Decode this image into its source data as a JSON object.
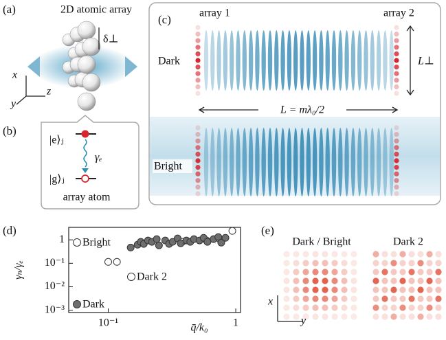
{
  "figure": {
    "a": {
      "label": "(a)",
      "title": "2D atomic array",
      "delta": "δ⊥",
      "x": "x",
      "y": "y",
      "z": "z"
    },
    "b": {
      "label": "(b)",
      "excited": "|e⟩ⱼ",
      "gamma": "γₑ",
      "ground": "|g⟩ⱼ",
      "caption": "array atom"
    },
    "c": {
      "label": "(c)",
      "array1": "array 1",
      "array2": "array 2",
      "dark": "Dark",
      "bright": "Bright",
      "lperp": "L⊥",
      "length": "L = mλ₀/2"
    },
    "d": {
      "label": "(d)"
    },
    "e": {
      "label": "(e)",
      "left": "Dark / Bright",
      "right": "Dark 2",
      "x": "x",
      "y": "y"
    }
  },
  "chart_data": {
    "type": "scatter",
    "xlabel": "q̄/k₀",
    "ylabel": "γₙ/γₑ",
    "log_x": true,
    "log_y": true,
    "xlim": [
      0.049,
      1.09
    ],
    "ylim": [
      0.0008,
      3.4
    ],
    "xticks": [
      {
        "value": 0.1,
        "label": "10⁻¹"
      },
      1
    ],
    "yticks": [
      {
        "value": 0.001,
        "label": "10⁻³"
      },
      {
        "value": 0.01,
        "label": "10⁻²"
      },
      {
        "value": 0.1,
        "label": "10⁻¹"
      },
      1
    ],
    "series": [
      {
        "name": "Bright",
        "color": "#ffffff",
        "x": [
          0.1,
          0.117,
          0.94
        ],
        "values": [
          0.115,
          0.115,
          2.4
        ]
      },
      {
        "name": "Dark 2",
        "color": "#ffffff",
        "x": [
          0.38,
          0.59,
          0.75
        ],
        "values": [
          0.82,
          0.94,
          1.07
        ]
      },
      {
        "name": "Dark",
        "color": "#6e6e6e",
        "x": [
          0.15,
          0.17,
          0.18,
          0.19,
          0.205,
          0.22,
          0.24,
          0.25,
          0.28,
          0.3,
          0.32,
          0.35,
          0.37,
          0.41,
          0.44,
          0.47,
          0.52,
          0.56,
          0.6,
          0.67,
          0.73,
          0.77,
          0.83
        ],
        "values": [
          0.47,
          0.62,
          0.82,
          0.67,
          0.94,
          0.82,
          1.07,
          0.58,
          0.94,
          0.67,
          0.82,
          1.15,
          0.71,
          0.94,
          0.82,
          1.07,
          0.94,
          1.22,
          0.82,
          1.07,
          1.31,
          0.76,
          1.22
        ]
      }
    ]
  }
}
